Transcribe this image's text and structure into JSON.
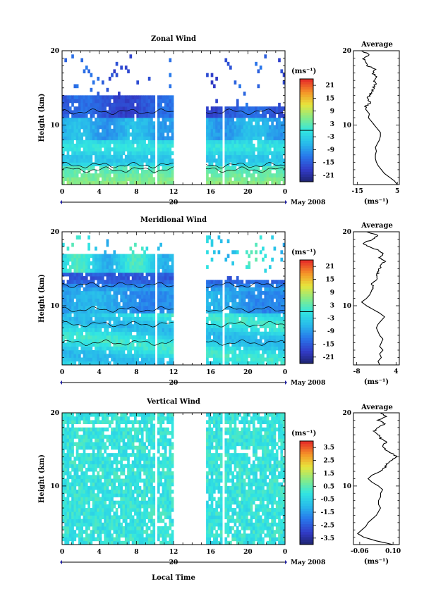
{
  "chart_data": [
    {
      "type": "heatmap",
      "title": "Zonal Wind",
      "ylabel": "Height (km)",
      "xlabel": "",
      "x_ticks": [
        "0",
        "4",
        "8",
        "12",
        "16",
        "20",
        "0"
      ],
      "y_ticks": [
        "20",
        "10"
      ],
      "date_label": "20",
      "date_unit_label": "May 2008",
      "xlim": [
        0,
        24
      ],
      "ylim": [
        2,
        20
      ],
      "no_data_hours": [
        [
          10.0,
          10.25
        ],
        [
          12.0,
          15.5
        ],
        [
          17.25,
          17.5
        ]
      ],
      "data_top_km": [
        14.0,
        12.5
      ],
      "colorbar": {
        "unit": "(ms⁻¹)",
        "ticks": [
          "21",
          "15",
          "9",
          "3",
          "-3",
          "-9",
          "-15",
          "-21"
        ],
        "vmin": -24,
        "vmax": 24
      },
      "profile": {
        "title": "Average",
        "xlabel": "(ms⁻¹)",
        "x_ticks": [
          "-15",
          "5"
        ],
        "xlim": [
          -17,
          6
        ],
        "y_ticks": [
          "20",
          "10"
        ],
        "heights": [
          2,
          2.5,
          3,
          3.5,
          4,
          4.5,
          5,
          5.5,
          6,
          6.5,
          7,
          7.5,
          8,
          8.5,
          9,
          9.5,
          10,
          10.5,
          11,
          11.5,
          12,
          12.5,
          13,
          13.5,
          14,
          14.5,
          15,
          15.5,
          16,
          16.5,
          17,
          17.5,
          18,
          18.5,
          19,
          19.5,
          20
        ],
        "values": [
          5,
          3.5,
          1,
          -1.5,
          -3,
          -4.5,
          -5.5,
          -6,
          -6,
          -5.5,
          -6,
          -5,
          -4,
          -3.5,
          -3.5,
          -5,
          -6.5,
          -8,
          -9.5,
          -9,
          -10.5,
          -11,
          -8.5,
          -10,
          -9,
          -7.5,
          -7,
          -6,
          -6.5,
          -5,
          -7.5,
          -6,
          -10,
          -11,
          -12,
          -9,
          -13
        ]
      }
    },
    {
      "type": "heatmap",
      "title": "Meridional Wind",
      "ylabel": "Height (km)",
      "xlabel": "",
      "x_ticks": [
        "0",
        "4",
        "8",
        "12",
        "16",
        "20",
        "0"
      ],
      "y_ticks": [
        "20",
        "10"
      ],
      "date_label": "20",
      "date_unit_label": "May 2008",
      "xlim": [
        0,
        24
      ],
      "ylim": [
        2,
        20
      ],
      "no_data_hours": [
        [
          10.0,
          10.25
        ],
        [
          12.0,
          15.5
        ],
        [
          17.25,
          17.5
        ]
      ],
      "data_top_km": [
        17.0,
        13.5
      ],
      "colorbar": {
        "unit": "(ms⁻¹)",
        "ticks": [
          "21",
          "15",
          "9",
          "3",
          "-3",
          "-9",
          "-15",
          "-21"
        ],
        "vmin": -24,
        "vmax": 24
      },
      "profile": {
        "title": "Average",
        "xlabel": "(ms⁻¹)",
        "x_ticks": [
          "-8",
          "4"
        ],
        "xlim": [
          -9,
          5
        ],
        "y_ticks": [
          "20",
          "10"
        ],
        "heights": [
          2,
          2.5,
          3,
          3.5,
          4,
          4.5,
          5,
          5.5,
          6,
          6.5,
          7,
          7.5,
          8,
          8.5,
          9,
          9.5,
          10,
          10.5,
          11,
          11.5,
          12,
          12.5,
          13,
          13.5,
          14,
          14.5,
          15,
          15.5,
          16,
          16.5,
          17,
          17.5,
          18,
          18.5,
          19,
          19.5,
          20
        ],
        "values": [
          -1,
          -1.5,
          -0.5,
          -1,
          0,
          -1,
          -0.5,
          0,
          -1,
          -1.5,
          -2,
          -1.5,
          -0.5,
          0.5,
          -1,
          -3,
          -5,
          -6.5,
          -5,
          -4,
          -3.5,
          -3,
          -3.5,
          -2,
          -2,
          -1.5,
          -1,
          -0.5,
          0.5,
          -1,
          0,
          -1.5,
          -4.5,
          -6,
          -3,
          -1.5,
          -5
        ]
      }
    },
    {
      "type": "heatmap",
      "title": "Vertical Wind",
      "ylabel": "Height (km)",
      "xlabel": "Local Time",
      "x_ticks": [
        "0",
        "4",
        "8",
        "12",
        "16",
        "20",
        "0"
      ],
      "y_ticks": [
        "20",
        "10"
      ],
      "date_label": "20",
      "date_unit_label": "May 2008",
      "xlim": [
        0,
        24
      ],
      "ylim": [
        2,
        20
      ],
      "no_data_hours": [
        [
          10.0,
          10.25
        ],
        [
          12.0,
          15.5
        ],
        [
          17.25,
          17.5
        ]
      ],
      "data_top_km": [
        20.0,
        20.0
      ],
      "colorbar": {
        "unit": "(ms⁻¹)",
        "ticks": [
          "3.5",
          "2.5",
          "1.5",
          "0.5",
          "-0.5",
          "-1.5",
          "-2.5",
          "-3.5"
        ],
        "vmin": -4,
        "vmax": 4
      },
      "profile": {
        "title": "Average",
        "xlabel": "(ms⁻¹)",
        "x_ticks": [
          "-0.06",
          "0.10"
        ],
        "xlim": [
          -0.09,
          0.13
        ],
        "y_ticks": [
          "20",
          "10"
        ],
        "heights": [
          2,
          2.5,
          3,
          3.5,
          4,
          4.5,
          5,
          5.5,
          6,
          6.5,
          7,
          7.5,
          8,
          8.5,
          9,
          9.5,
          10,
          10.5,
          11,
          11.5,
          12,
          12.5,
          13,
          13.5,
          14,
          14.5,
          15,
          15.5,
          16,
          16.5,
          17,
          17.5,
          18,
          18.5,
          19,
          19.5,
          20
        ],
        "values": [
          0.1,
          0.02,
          -0.04,
          -0.07,
          -0.05,
          -0.03,
          -0.02,
          0.0,
          0.02,
          0.03,
          0.04,
          0.03,
          0.03,
          0.04,
          0.04,
          0.05,
          0.03,
          0.0,
          -0.02,
          0.0,
          0.04,
          0.06,
          0.07,
          0.09,
          0.12,
          0.09,
          0.06,
          0.05,
          0.07,
          0.04,
          0.03,
          0.01,
          0.03,
          0.06,
          0.03,
          0.07,
          0.04
        ]
      }
    }
  ]
}
